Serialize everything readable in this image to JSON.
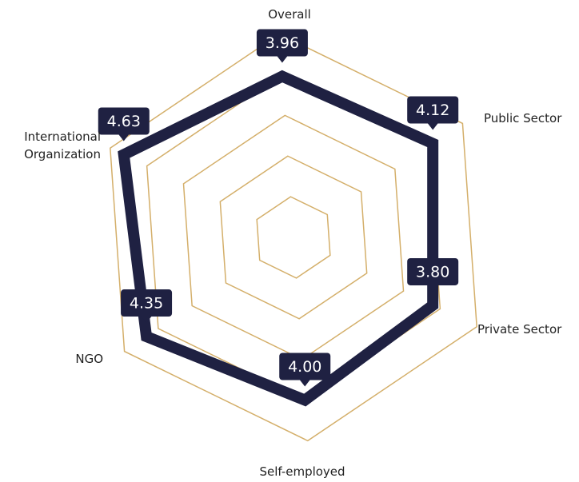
{
  "chart_data": {
    "type": "radar",
    "categories": [
      "Overall",
      "Public Sector",
      "Private Sector",
      "Self-employed",
      "NGO",
      "International Organization"
    ],
    "values": [
      3.96,
      4.12,
      3.8,
      4.0,
      4.35,
      4.63
    ],
    "value_labels": [
      "3.96",
      "4.12",
      "3.80",
      "4.00",
      "4.35",
      "4.63"
    ],
    "color": "#1f2142",
    "grid_color": "#d4af6a",
    "ylim": [
      0,
      5
    ],
    "yticks": [
      1,
      2,
      3,
      4,
      5
    ]
  }
}
